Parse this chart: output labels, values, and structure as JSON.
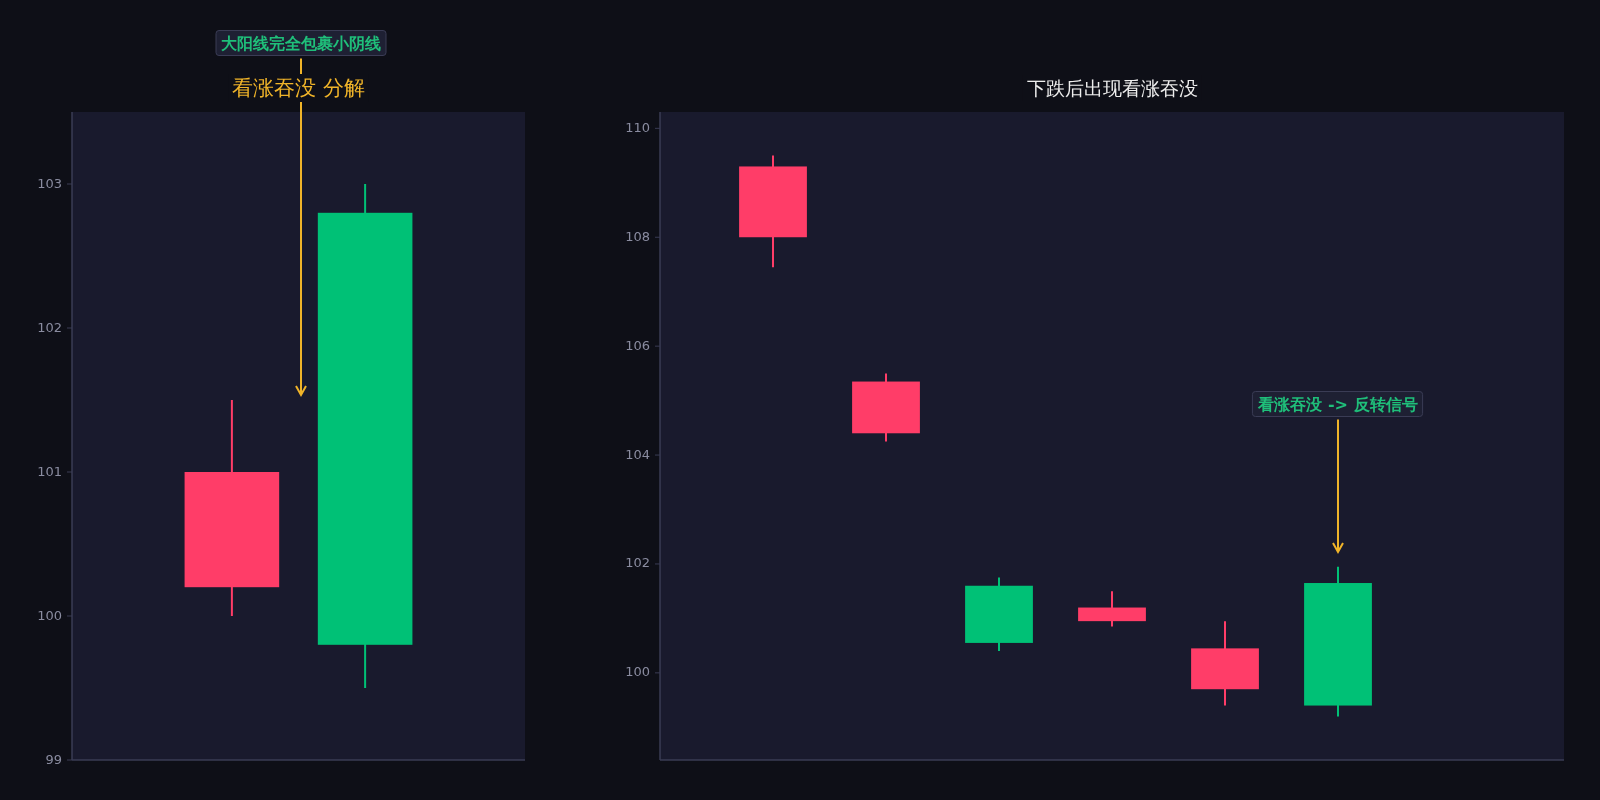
{
  "chart_data": [
    {
      "type": "candlestick",
      "title": "看涨吞没 分解",
      "categories": [
        null,
        null
      ],
      "ohlc": [
        [
          101,
          101.5,
          100,
          100.2
        ],
        [
          99.8,
          103,
          99.5,
          102.8
        ]
      ],
      "colors": [
        "#ff3d68",
        "#00c176"
      ],
      "ylim": [
        99,
        103.5
      ],
      "yticks": [
        99,
        100,
        101,
        102,
        103
      ],
      "tick_labels": "y",
      "annotations": [
        "大阳线完全包裹小阴线"
      ]
    },
    {
      "type": "candlestick",
      "title": "下跌后出现看涨吞没",
      "categories": [
        null,
        null,
        null,
        null,
        null,
        null
      ],
      "ohlc": [
        [
          109.3,
          109.5,
          107.45,
          108.0
        ],
        [
          105.35,
          105.5,
          104.25,
          104.4
        ],
        [
          100.55,
          101.75,
          100.4,
          101.6
        ],
        [
          101.2,
          101.5,
          100.85,
          100.95
        ],
        [
          100.45,
          100.95,
          99.4,
          99.7
        ],
        [
          99.4,
          101.95,
          99.2,
          101.65
        ]
      ],
      "colors": [
        "#ff3d68",
        "#ff3d68",
        "#00c176",
        "#ff3d68",
        "#ff3d68",
        "#00c176"
      ],
      "ylim": [
        98.4,
        110.3
      ],
      "yticks": [
        100,
        102,
        104,
        106,
        108,
        110
      ],
      "tick_labels": "y",
      "annotations": [
        "看涨吞没 -> 反转信号"
      ]
    }
  ]
}
